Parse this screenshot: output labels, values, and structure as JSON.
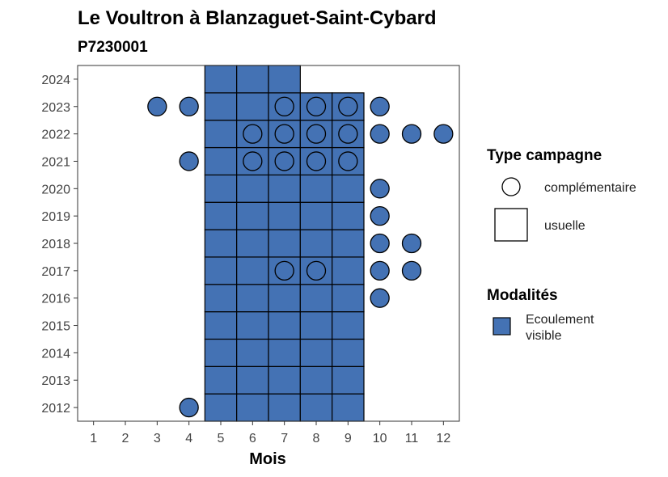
{
  "chart_data": {
    "type": "heatmap",
    "title": "Le Voultron à Blanzaguet-Saint-Cybard",
    "subtitle": "P7230001",
    "xlabel": "Mois",
    "ylabel": "",
    "x_ticks": [
      1,
      2,
      3,
      4,
      5,
      6,
      7,
      8,
      9,
      10,
      11,
      12
    ],
    "y_ticks": [
      2012,
      2013,
      2014,
      2015,
      2016,
      2017,
      2018,
      2019,
      2020,
      2021,
      2022,
      2023,
      2024
    ],
    "xlim": [
      0.5,
      12.5
    ],
    "ylim": [
      2011.5,
      2024.5
    ],
    "grid": false,
    "fill_color": "#4472b4",
    "usuelle_squares": [
      {
        "year": 2012,
        "months": [
          5,
          6,
          7,
          8,
          9
        ]
      },
      {
        "year": 2013,
        "months": [
          5,
          6,
          7,
          8,
          9
        ]
      },
      {
        "year": 2014,
        "months": [
          5,
          6,
          7,
          8,
          9
        ]
      },
      {
        "year": 2015,
        "months": [
          5,
          6,
          7,
          8,
          9
        ]
      },
      {
        "year": 2016,
        "months": [
          5,
          6,
          7,
          8,
          9
        ]
      },
      {
        "year": 2017,
        "months": [
          5,
          6,
          7,
          8,
          9
        ]
      },
      {
        "year": 2018,
        "months": [
          5,
          6,
          7,
          8,
          9
        ]
      },
      {
        "year": 2019,
        "months": [
          5,
          6,
          7,
          8,
          9
        ]
      },
      {
        "year": 2020,
        "months": [
          5,
          6,
          7,
          8,
          9
        ]
      },
      {
        "year": 2021,
        "months": [
          5,
          6,
          7,
          8,
          9
        ]
      },
      {
        "year": 2022,
        "months": [
          5,
          6,
          7,
          8,
          9
        ]
      },
      {
        "year": 2023,
        "months": [
          5,
          6,
          7,
          8,
          9
        ]
      },
      {
        "year": 2024,
        "months": [
          5,
          6,
          7
        ]
      }
    ],
    "complementaire_points": [
      {
        "year": 2012,
        "months": [
          4
        ]
      },
      {
        "year": 2016,
        "months": [
          10
        ]
      },
      {
        "year": 2017,
        "months": [
          7,
          8,
          10,
          11
        ]
      },
      {
        "year": 2018,
        "months": [
          10,
          11
        ]
      },
      {
        "year": 2019,
        "months": [
          10
        ]
      },
      {
        "year": 2020,
        "months": [
          10
        ]
      },
      {
        "year": 2021,
        "months": [
          4,
          6,
          7,
          8,
          9
        ]
      },
      {
        "year": 2022,
        "months": [
          6,
          7,
          8,
          9,
          10,
          11,
          12
        ]
      },
      {
        "year": 2023,
        "months": [
          3,
          4,
          7,
          8,
          9,
          10
        ]
      }
    ],
    "legend_type": {
      "title": "Type campagne",
      "entries": [
        {
          "label": "complémentaire",
          "shape": "circle"
        },
        {
          "label": "usuelle",
          "shape": "square"
        }
      ],
      "placement": "right"
    },
    "legend_modalites": {
      "title": "Modalités",
      "entries": [
        {
          "label_line1": "Ecoulement",
          "label_line2": "visible",
          "color": "#4472b4"
        }
      ],
      "placement": "right"
    }
  }
}
